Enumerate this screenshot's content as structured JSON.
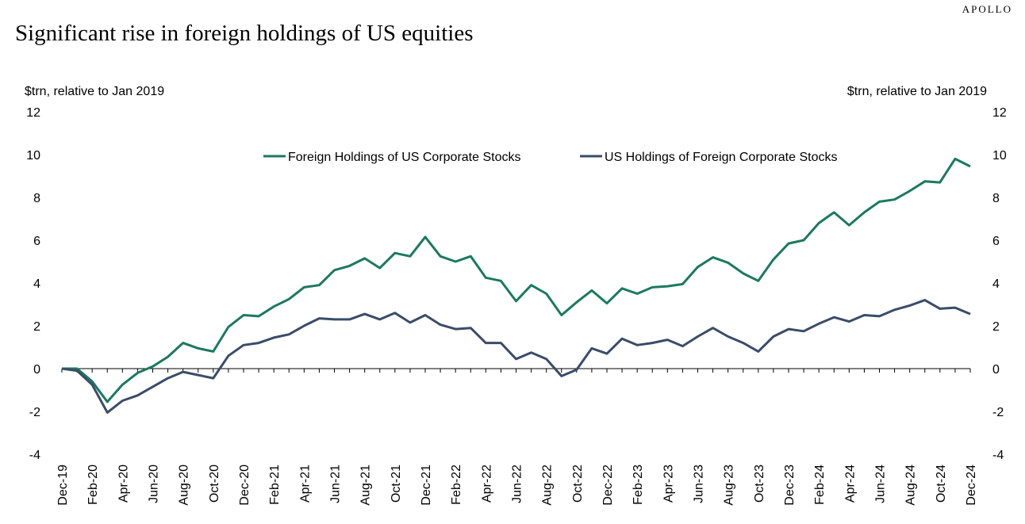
{
  "brand": "APOLLO",
  "title": "Significant rise in foreign holdings of US equities",
  "chart_data": {
    "type": "line",
    "ylabel_left": "$trn, relative to Jan 2019",
    "ylabel_right": "$trn, relative to Jan 2019",
    "ylim": [
      -4,
      12
    ],
    "yticks": [
      -4,
      -2,
      0,
      2,
      4,
      6,
      8,
      10,
      12
    ],
    "grid": false,
    "legend_position": "top-center",
    "tick_labels": [
      "Dec-19",
      "Feb-20",
      "Apr-20",
      "Jun-20",
      "Aug-20",
      "Oct-20",
      "Dec-20",
      "Feb-21",
      "Apr-21",
      "Jun-21",
      "Aug-21",
      "Oct-21",
      "Dec-21",
      "Feb-22",
      "Apr-22",
      "Jun-22",
      "Aug-22",
      "Oct-22",
      "Dec-22",
      "Feb-23",
      "Apr-23",
      "Jun-23",
      "Aug-23",
      "Oct-23",
      "Dec-23",
      "Feb-24",
      "Apr-24",
      "Jun-24",
      "Aug-24",
      "Oct-24",
      "Dec-24"
    ],
    "x": [
      "Dec-19",
      "Jan-20",
      "Feb-20",
      "Mar-20",
      "Apr-20",
      "May-20",
      "Jun-20",
      "Jul-20",
      "Aug-20",
      "Sep-20",
      "Oct-20",
      "Nov-20",
      "Dec-20",
      "Jan-21",
      "Feb-21",
      "Mar-21",
      "Apr-21",
      "May-21",
      "Jun-21",
      "Jul-21",
      "Aug-21",
      "Sep-21",
      "Oct-21",
      "Nov-21",
      "Dec-21",
      "Jan-22",
      "Feb-22",
      "Mar-22",
      "Apr-22",
      "May-22",
      "Jun-22",
      "Jul-22",
      "Aug-22",
      "Sep-22",
      "Oct-22",
      "Nov-22",
      "Dec-22",
      "Jan-23",
      "Feb-23",
      "Mar-23",
      "Apr-23",
      "May-23",
      "Jun-23",
      "Jul-23",
      "Aug-23",
      "Sep-23",
      "Oct-23",
      "Nov-23",
      "Dec-23",
      "Jan-24",
      "Feb-24",
      "Mar-24",
      "Apr-24",
      "May-24",
      "Jun-24",
      "Jul-24",
      "Aug-24",
      "Sep-24",
      "Oct-24",
      "Nov-24",
      "Dec-24"
    ],
    "series": [
      {
        "name": "Foreign Holdings of US Corporate Stocks",
        "color": "#1a7a5e",
        "values": [
          0,
          0.0,
          -0.6,
          -1.55,
          -0.75,
          -0.2,
          0.1,
          0.55,
          1.2,
          0.95,
          0.8,
          1.95,
          2.5,
          2.45,
          2.9,
          3.25,
          3.8,
          3.9,
          4.6,
          4.8,
          5.15,
          4.7,
          5.4,
          5.25,
          6.15,
          5.25,
          5.0,
          5.25,
          4.25,
          4.1,
          3.15,
          3.9,
          3.5,
          2.5,
          3.1,
          3.65,
          3.05,
          3.75,
          3.5,
          3.8,
          3.85,
          3.95,
          4.75,
          5.2,
          4.95,
          4.45,
          4.1,
          5.1,
          5.85,
          6.0,
          6.8,
          7.3,
          6.7,
          7.3,
          7.8,
          7.9,
          8.3,
          8.75,
          8.7,
          9.8,
          9.45
        ]
      },
      {
        "name": "US Holdings of Foreign Corporate Stocks",
        "color": "#3a4c69",
        "values": [
          0,
          -0.1,
          -0.75,
          -2.05,
          -1.5,
          -1.25,
          -0.85,
          -0.45,
          -0.15,
          -0.3,
          -0.45,
          0.6,
          1.1,
          1.2,
          1.45,
          1.6,
          2.0,
          2.35,
          2.3,
          2.3,
          2.55,
          2.3,
          2.6,
          2.15,
          2.5,
          2.05,
          1.85,
          1.9,
          1.2,
          1.2,
          0.45,
          0.75,
          0.45,
          -0.35,
          -0.05,
          0.95,
          0.7,
          1.4,
          1.1,
          1.2,
          1.35,
          1.05,
          1.5,
          1.9,
          1.5,
          1.2,
          0.8,
          1.5,
          1.85,
          1.75,
          2.1,
          2.4,
          2.2,
          2.5,
          2.45,
          2.75,
          2.95,
          3.2,
          2.8,
          2.85,
          2.55
        ]
      }
    ]
  }
}
